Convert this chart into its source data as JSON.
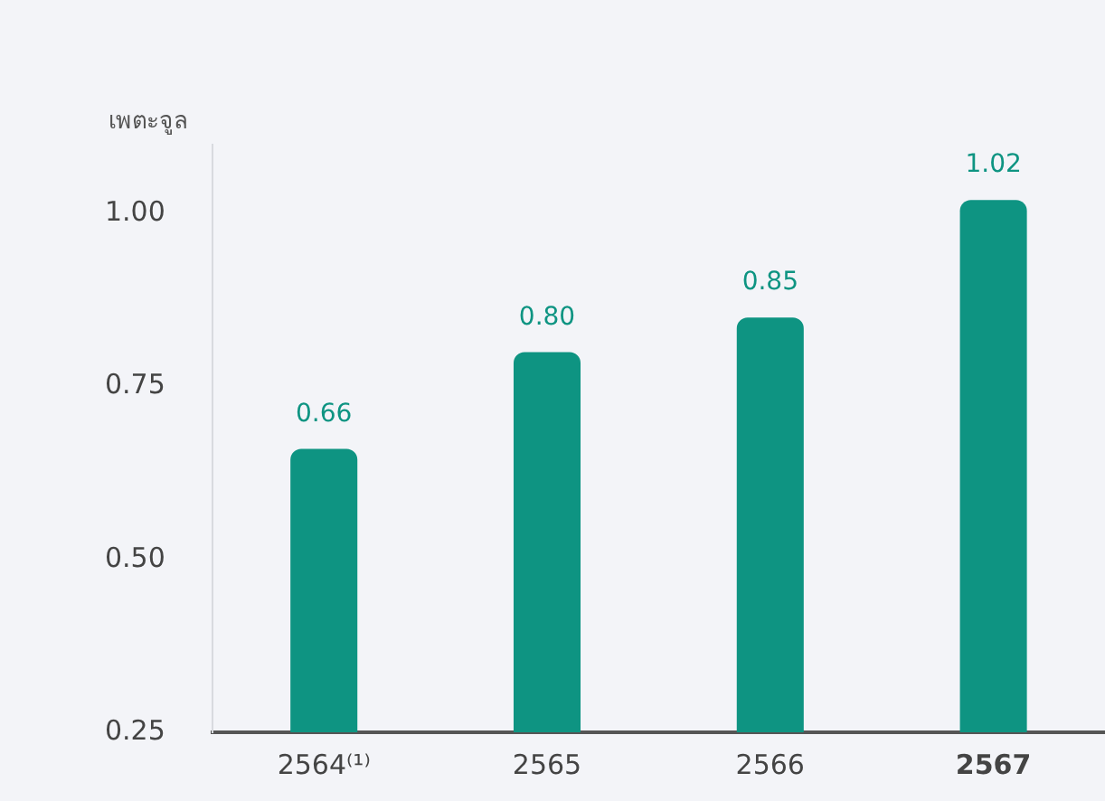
{
  "chart_data": {
    "type": "bar",
    "ylabel": "เพตะจูล",
    "categories": [
      "2564⁽¹⁾",
      "2565",
      "2566",
      "2567"
    ],
    "values": [
      0.66,
      0.8,
      0.85,
      1.02
    ],
    "color": "#0e9482",
    "ylim": [
      0.25,
      1.1
    ],
    "yticks": [
      {
        "value": 0.25,
        "label": "0.25"
      },
      {
        "value": 0.5,
        "label": "0.50"
      },
      {
        "value": 0.75,
        "label": "0.75"
      },
      {
        "value": 1,
        "label": "1.00"
      }
    ],
    "grid": false,
    "legend": false,
    "value_labels": [
      "0.66",
      "0.80",
      "0.85",
      "1.02"
    ]
  }
}
